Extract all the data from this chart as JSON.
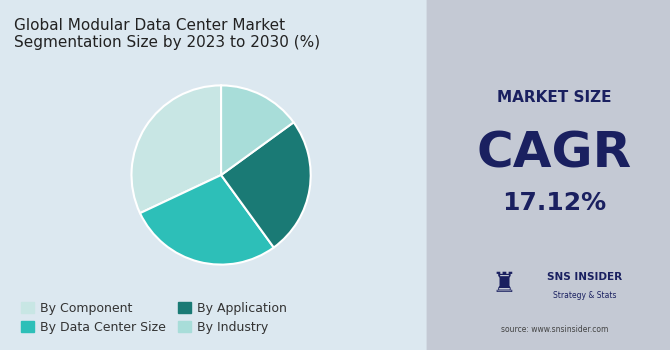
{
  "title": "Global Modular Data Center Market\nSegmentation Size by 2023 to 2030 (%)",
  "pie_values": [
    32,
    28,
    25,
    15
  ],
  "pie_colors": [
    "#c8e6e4",
    "#2dbfb8",
    "#1a7a75",
    "#a8ddd9"
  ],
  "pie_labels": [
    "By Component",
    "By Data Center Size",
    "By Application",
    "By Industry"
  ],
  "legend_labels": [
    "By Component",
    "By Data Center Size",
    "By Application",
    "By Industry"
  ],
  "legend_colors": [
    "#c8e6e4",
    "#2dbfb8",
    "#1a7a75",
    "#a8ddd9"
  ],
  "left_bg": "#dce8f0",
  "right_bg": "#c4c9d4",
  "market_size_label": "MARKET SIZE",
  "cagr_label": "CAGR",
  "cagr_value": "17.12%",
  "brand_name": "SNS INSIDER",
  "brand_sub": "Strategy & Stats",
  "source_text": "source: www.snsinsider.com",
  "text_color_dark": "#1a2060",
  "title_fontsize": 11,
  "legend_fontsize": 9
}
